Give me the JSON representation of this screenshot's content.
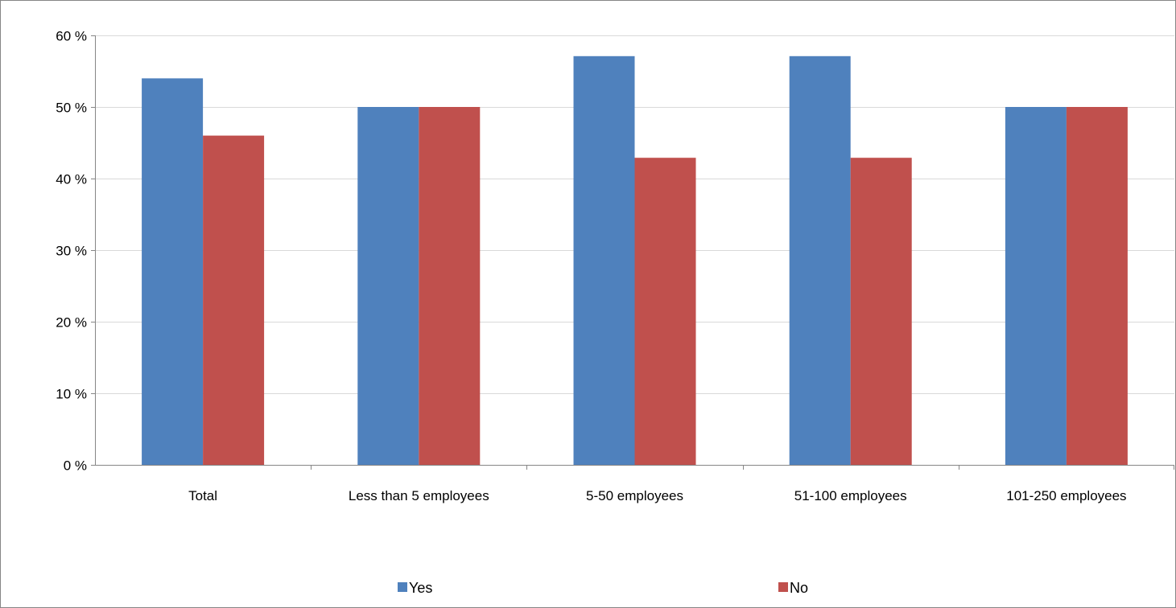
{
  "chart_data": {
    "type": "bar",
    "categories": [
      "Total",
      "Less than 5 employees",
      "5-50 employees",
      "51-100 employees",
      "101-250 employees"
    ],
    "series": [
      {
        "name": "Yes",
        "color": "#4F81BD",
        "values": [
          54,
          50,
          57.1,
          57.1,
          50
        ]
      },
      {
        "name": "No",
        "color": "#C0504D",
        "values": [
          46,
          50,
          42.9,
          42.9,
          50
        ]
      }
    ],
    "ylim": [
      0,
      60
    ],
    "yticks": [
      {
        "value": 0,
        "label": "0 %"
      },
      {
        "value": 10,
        "label": "10 %"
      },
      {
        "value": 20,
        "label": "20 %"
      },
      {
        "value": 30,
        "label": "30 %"
      },
      {
        "value": 40,
        "label": "40 %"
      },
      {
        "value": 50,
        "label": "50 %"
      },
      {
        "value": 60,
        "label": "60 %"
      }
    ],
    "grid": true,
    "legend_position": "bottom",
    "title": "",
    "xlabel": "",
    "ylabel": ""
  }
}
